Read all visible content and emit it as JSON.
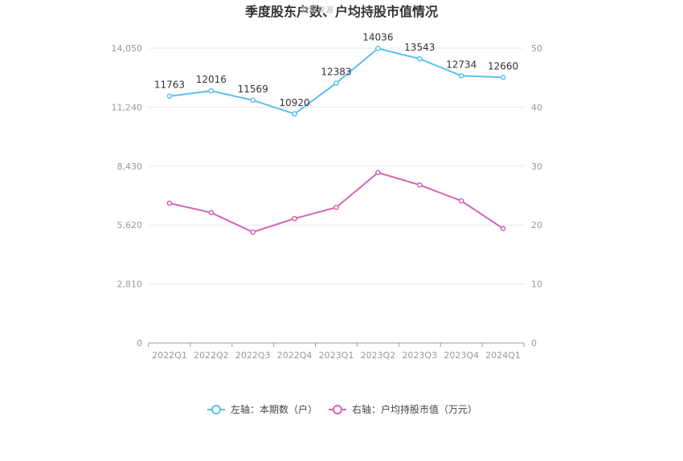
{
  "chart_data": {
    "type": "line",
    "title": "季度股东户数、户均持股市值情况",
    "watermark": "数据来源",
    "categories": [
      "2022Q1",
      "2022Q2",
      "2022Q3",
      "2022Q4",
      "2023Q1",
      "2023Q2",
      "2023Q3",
      "2023Q4",
      "2024Q1"
    ],
    "left_axis": {
      "ticks": [
        "0",
        "2,810",
        "5,620",
        "8,430",
        "11,240",
        "14,050"
      ],
      "ylim": [
        0,
        14050
      ]
    },
    "right_axis": {
      "ticks": [
        "0",
        "10",
        "20",
        "30",
        "40",
        "50"
      ],
      "ylim": [
        0,
        50
      ]
    },
    "series": [
      {
        "name": "左轴：本期数（户）",
        "axis": "left",
        "color": "#5bc0f0",
        "values": [
          11763,
          12016,
          11569,
          10920,
          12383,
          14036,
          13543,
          12734,
          12660
        ],
        "labels": [
          "11763",
          "12016",
          "11569",
          "10920",
          "12383",
          "14036",
          "13543",
          "12734",
          "12660"
        ]
      },
      {
        "name": "右轴：户均持股市值（万元）",
        "axis": "right",
        "color": "#d465b3",
        "values": [
          23.7,
          22.1,
          18.8,
          21.1,
          23.0,
          28.9,
          26.8,
          24.1,
          19.4
        ]
      }
    ],
    "legend_position": "bottom-center",
    "grid": true
  }
}
